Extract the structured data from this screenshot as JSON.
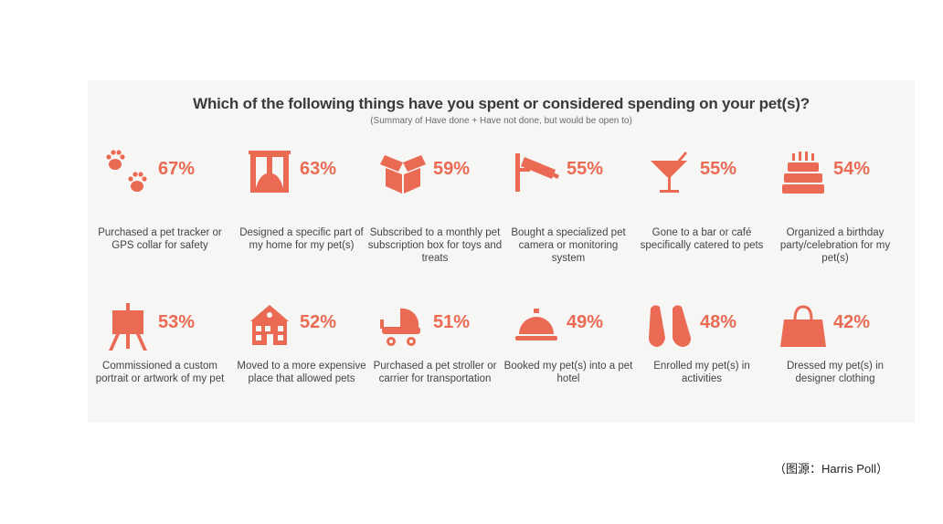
{
  "chart_data": {
    "type": "table",
    "title": "Which of the following things have you spent or considered spending on your pet(s)?",
    "subtitle": "(Summary of Have done + Have not done, but would be open to)",
    "accent_color": "#ea6a53",
    "items": [
      {
        "icon": "paw-prints-icon",
        "value": 67,
        "pct_label": "67%",
        "label": "Purchased a pet tracker or GPS collar for safety"
      },
      {
        "icon": "window-curtains-icon",
        "value": 63,
        "pct_label": "63%",
        "label": "Designed a specific part of my home for my pet(s)"
      },
      {
        "icon": "box-icon",
        "value": 59,
        "pct_label": "59%",
        "label": "Subscribed to a monthly pet subscription box for toys and treats"
      },
      {
        "icon": "security-camera-icon",
        "value": 55,
        "pct_label": "55%",
        "label": "Bought a specialized pet camera or monitoring system"
      },
      {
        "icon": "cocktail-glass-icon",
        "value": 55,
        "pct_label": "55%",
        "label": "Gone to a bar or café specifically catered to pets"
      },
      {
        "icon": "birthday-cake-icon",
        "value": 54,
        "pct_label": "54%",
        "label": "Organized a birthday party/celebration for my pet(s)"
      },
      {
        "icon": "easel-icon",
        "value": 53,
        "pct_label": "53%",
        "label": "Commissioned a custom portrait or artwork of my pet"
      },
      {
        "icon": "house-icon",
        "value": 52,
        "pct_label": "52%",
        "label": "Moved to a more expensive place that allowed pets"
      },
      {
        "icon": "stroller-icon",
        "value": 51,
        "pct_label": "51%",
        "label": "Purchased a pet stroller or carrier for transportation"
      },
      {
        "icon": "service-bell-icon",
        "value": 49,
        "pct_label": "49%",
        "label": "Booked my pet(s) into a pet hotel"
      },
      {
        "icon": "swim-fins-icon",
        "value": 48,
        "pct_label": "48%",
        "label": "Enrolled my pet(s) in activities"
      },
      {
        "icon": "handbag-icon",
        "value": 42,
        "pct_label": "42%",
        "label": "Dressed my pet(s) in designer clothing"
      }
    ]
  },
  "source": "（图源：Harris Poll）"
}
